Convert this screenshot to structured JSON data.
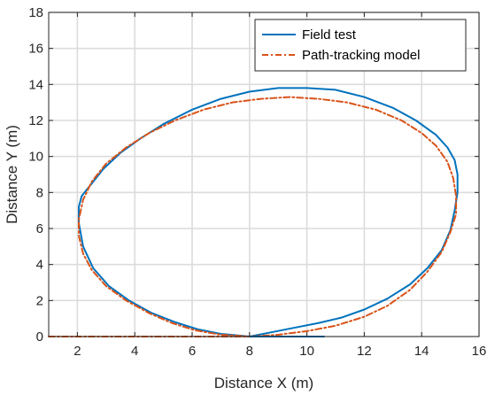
{
  "chart_data": {
    "type": "line",
    "title": "",
    "xlabel": "Distance X (m)",
    "ylabel": "Distance Y (m)",
    "xlim": [
      1,
      16
    ],
    "ylim": [
      0,
      18
    ],
    "xticks": [
      2,
      4,
      6,
      8,
      10,
      12,
      14,
      16
    ],
    "yticks": [
      0,
      2,
      4,
      6,
      8,
      10,
      12,
      14,
      16,
      18
    ],
    "xtick_labels": [
      "2",
      "4",
      "6",
      "8",
      "10",
      "12",
      "14",
      "16"
    ],
    "ytick_labels": [
      "0",
      "2",
      "4",
      "6",
      "8",
      "10",
      "12",
      "14",
      "16",
      "18"
    ],
    "grid": true,
    "legend_position": "top-right",
    "series": [
      {
        "name": "Field test",
        "color": "#0072BD",
        "line_style": "solid",
        "x": [
          8.0,
          8.8,
          9.6,
          10.4,
          11.2,
          12.0,
          12.8,
          13.6,
          14.2,
          14.7,
          15.0,
          15.15,
          15.25,
          15.25,
          15.15,
          14.9,
          14.5,
          13.8,
          13.0,
          12.0,
          11.0,
          10.0,
          9.0,
          8.0,
          7.0,
          6.0,
          5.0,
          4.2,
          3.5,
          2.9,
          2.45,
          2.15,
          2.05,
          2.05,
          2.2,
          2.55,
          3.1,
          3.8,
          4.6,
          5.4,
          6.2,
          7.0,
          8.0
        ],
        "y": [
          0.0,
          0.25,
          0.5,
          0.75,
          1.05,
          1.5,
          2.1,
          2.9,
          3.8,
          4.8,
          5.9,
          7.0,
          8.0,
          9.0,
          9.8,
          10.5,
          11.2,
          12.0,
          12.7,
          13.3,
          13.7,
          13.8,
          13.8,
          13.6,
          13.2,
          12.6,
          11.8,
          11.0,
          10.2,
          9.3,
          8.4,
          7.8,
          7.2,
          6.3,
          5.0,
          3.8,
          2.8,
          2.0,
          1.3,
          0.8,
          0.4,
          0.15,
          0.0
        ]
      },
      {
        "name": "Path-tracking model",
        "color": "#D95319",
        "line_style": "dash-dot",
        "x": [
          8.0,
          9.0,
          10.0,
          11.0,
          12.0,
          12.8,
          13.6,
          14.2,
          14.7,
          15.0,
          15.2,
          15.2,
          15.1,
          14.9,
          14.5,
          14.0,
          13.3,
          12.4,
          11.4,
          10.4,
          9.4,
          8.4,
          7.4,
          6.4,
          5.4,
          4.5,
          3.7,
          3.0,
          2.5,
          2.2,
          2.05,
          2.05,
          2.2,
          2.5,
          3.0,
          3.7,
          4.5,
          5.3,
          6.1,
          7.0,
          8.0
        ],
        "y": [
          0.0,
          0.1,
          0.3,
          0.6,
          1.1,
          1.7,
          2.6,
          3.6,
          4.7,
          5.8,
          6.8,
          7.8,
          8.8,
          9.7,
          10.6,
          11.3,
          12.0,
          12.6,
          13.0,
          13.2,
          13.3,
          13.2,
          13.0,
          12.6,
          12.0,
          11.3,
          10.5,
          9.6,
          8.6,
          7.6,
          6.5,
          5.6,
          4.6,
          3.7,
          2.8,
          2.0,
          1.3,
          0.75,
          0.35,
          0.1,
          0.0
        ]
      },
      {
        "name": "",
        "color": "#D95319",
        "line_style": "dash-dot",
        "x": [
          1.0,
          8.0
        ],
        "y": [
          0.0,
          0.0
        ]
      },
      {
        "name": "",
        "color": "#0072BD",
        "line_style": "solid",
        "x": [
          8.0,
          10.6
        ],
        "y": [
          0.0,
          0.0
        ]
      }
    ]
  }
}
